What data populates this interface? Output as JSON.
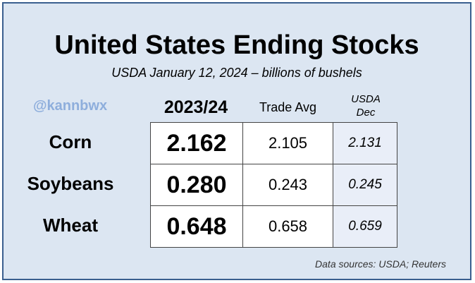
{
  "title": "United States Ending Stocks",
  "subtitle": "USDA January 12, 2024 – billions of bushels",
  "handle": "@kannbwx",
  "columns": {
    "main": "2023/24",
    "trade": "Trade Avg",
    "usda_line1": "USDA",
    "usda_line2": "Dec"
  },
  "rows": [
    {
      "label": "Corn",
      "main": "2.162",
      "trade": "2.105",
      "usda": "2.131"
    },
    {
      "label": "Soybeans",
      "main": "0.280",
      "trade": "0.243",
      "usda": "0.245"
    },
    {
      "label": "Wheat",
      "main": "0.648",
      "trade": "0.658",
      "usda": "0.659"
    }
  ],
  "source": "Data sources: USDA; Reuters",
  "colors": {
    "background": "#dce6f2",
    "border": "#3a5f8f",
    "handle": "#8eaedc"
  }
}
